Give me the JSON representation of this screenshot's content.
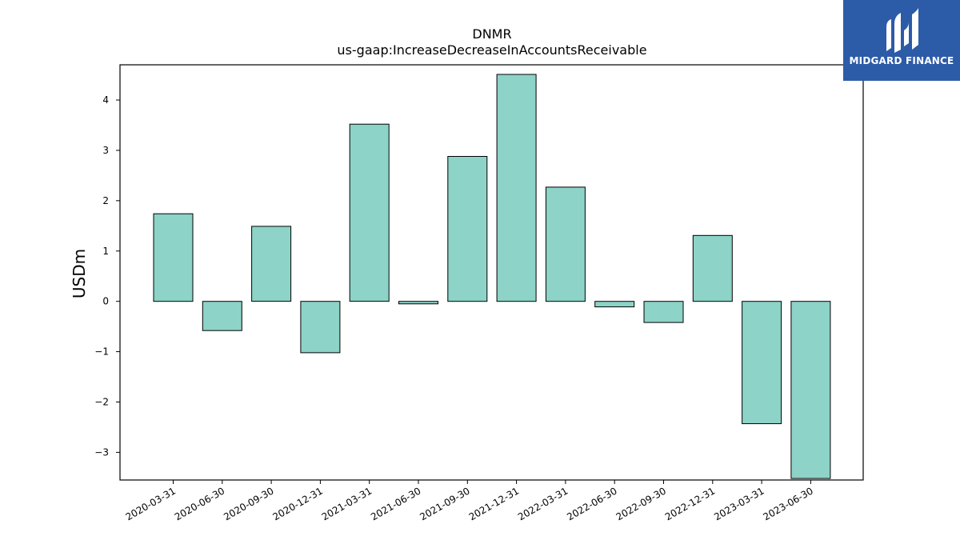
{
  "chart_data": {
    "type": "bar",
    "title": "DNMR",
    "subtitle": "us-gaap:IncreaseDecreaseInAccountsReceivable",
    "xlabel": "",
    "ylabel": "USDm",
    "ylim": [
      -3.55,
      4.7
    ],
    "yticks": [
      -3,
      -2,
      -1,
      0,
      1,
      2,
      3,
      4
    ],
    "ytick_labels": [
      "−3",
      "−2",
      "−1",
      "0",
      "1",
      "2",
      "3",
      "4"
    ],
    "categories": [
      "2020-03-31",
      "2020-06-30",
      "2020-09-30",
      "2020-12-31",
      "2021-03-31",
      "2021-06-30",
      "2021-09-30",
      "2021-12-31",
      "2022-03-31",
      "2022-06-30",
      "2022-09-30",
      "2022-12-31",
      "2023-03-31",
      "2023-06-30"
    ],
    "values": [
      1.74,
      -0.58,
      1.49,
      -1.02,
      3.52,
      -0.05,
      2.88,
      4.51,
      2.27,
      -0.11,
      -0.42,
      1.31,
      -2.43,
      -3.52
    ],
    "bar_color": "#8dd3c7",
    "edge_color": "#000000",
    "grid": false,
    "legend": "none"
  },
  "logo": {
    "text": "MIDGARD FINANCE",
    "background": "#2c5ba8",
    "icon": "midgard-logo-icon"
  }
}
